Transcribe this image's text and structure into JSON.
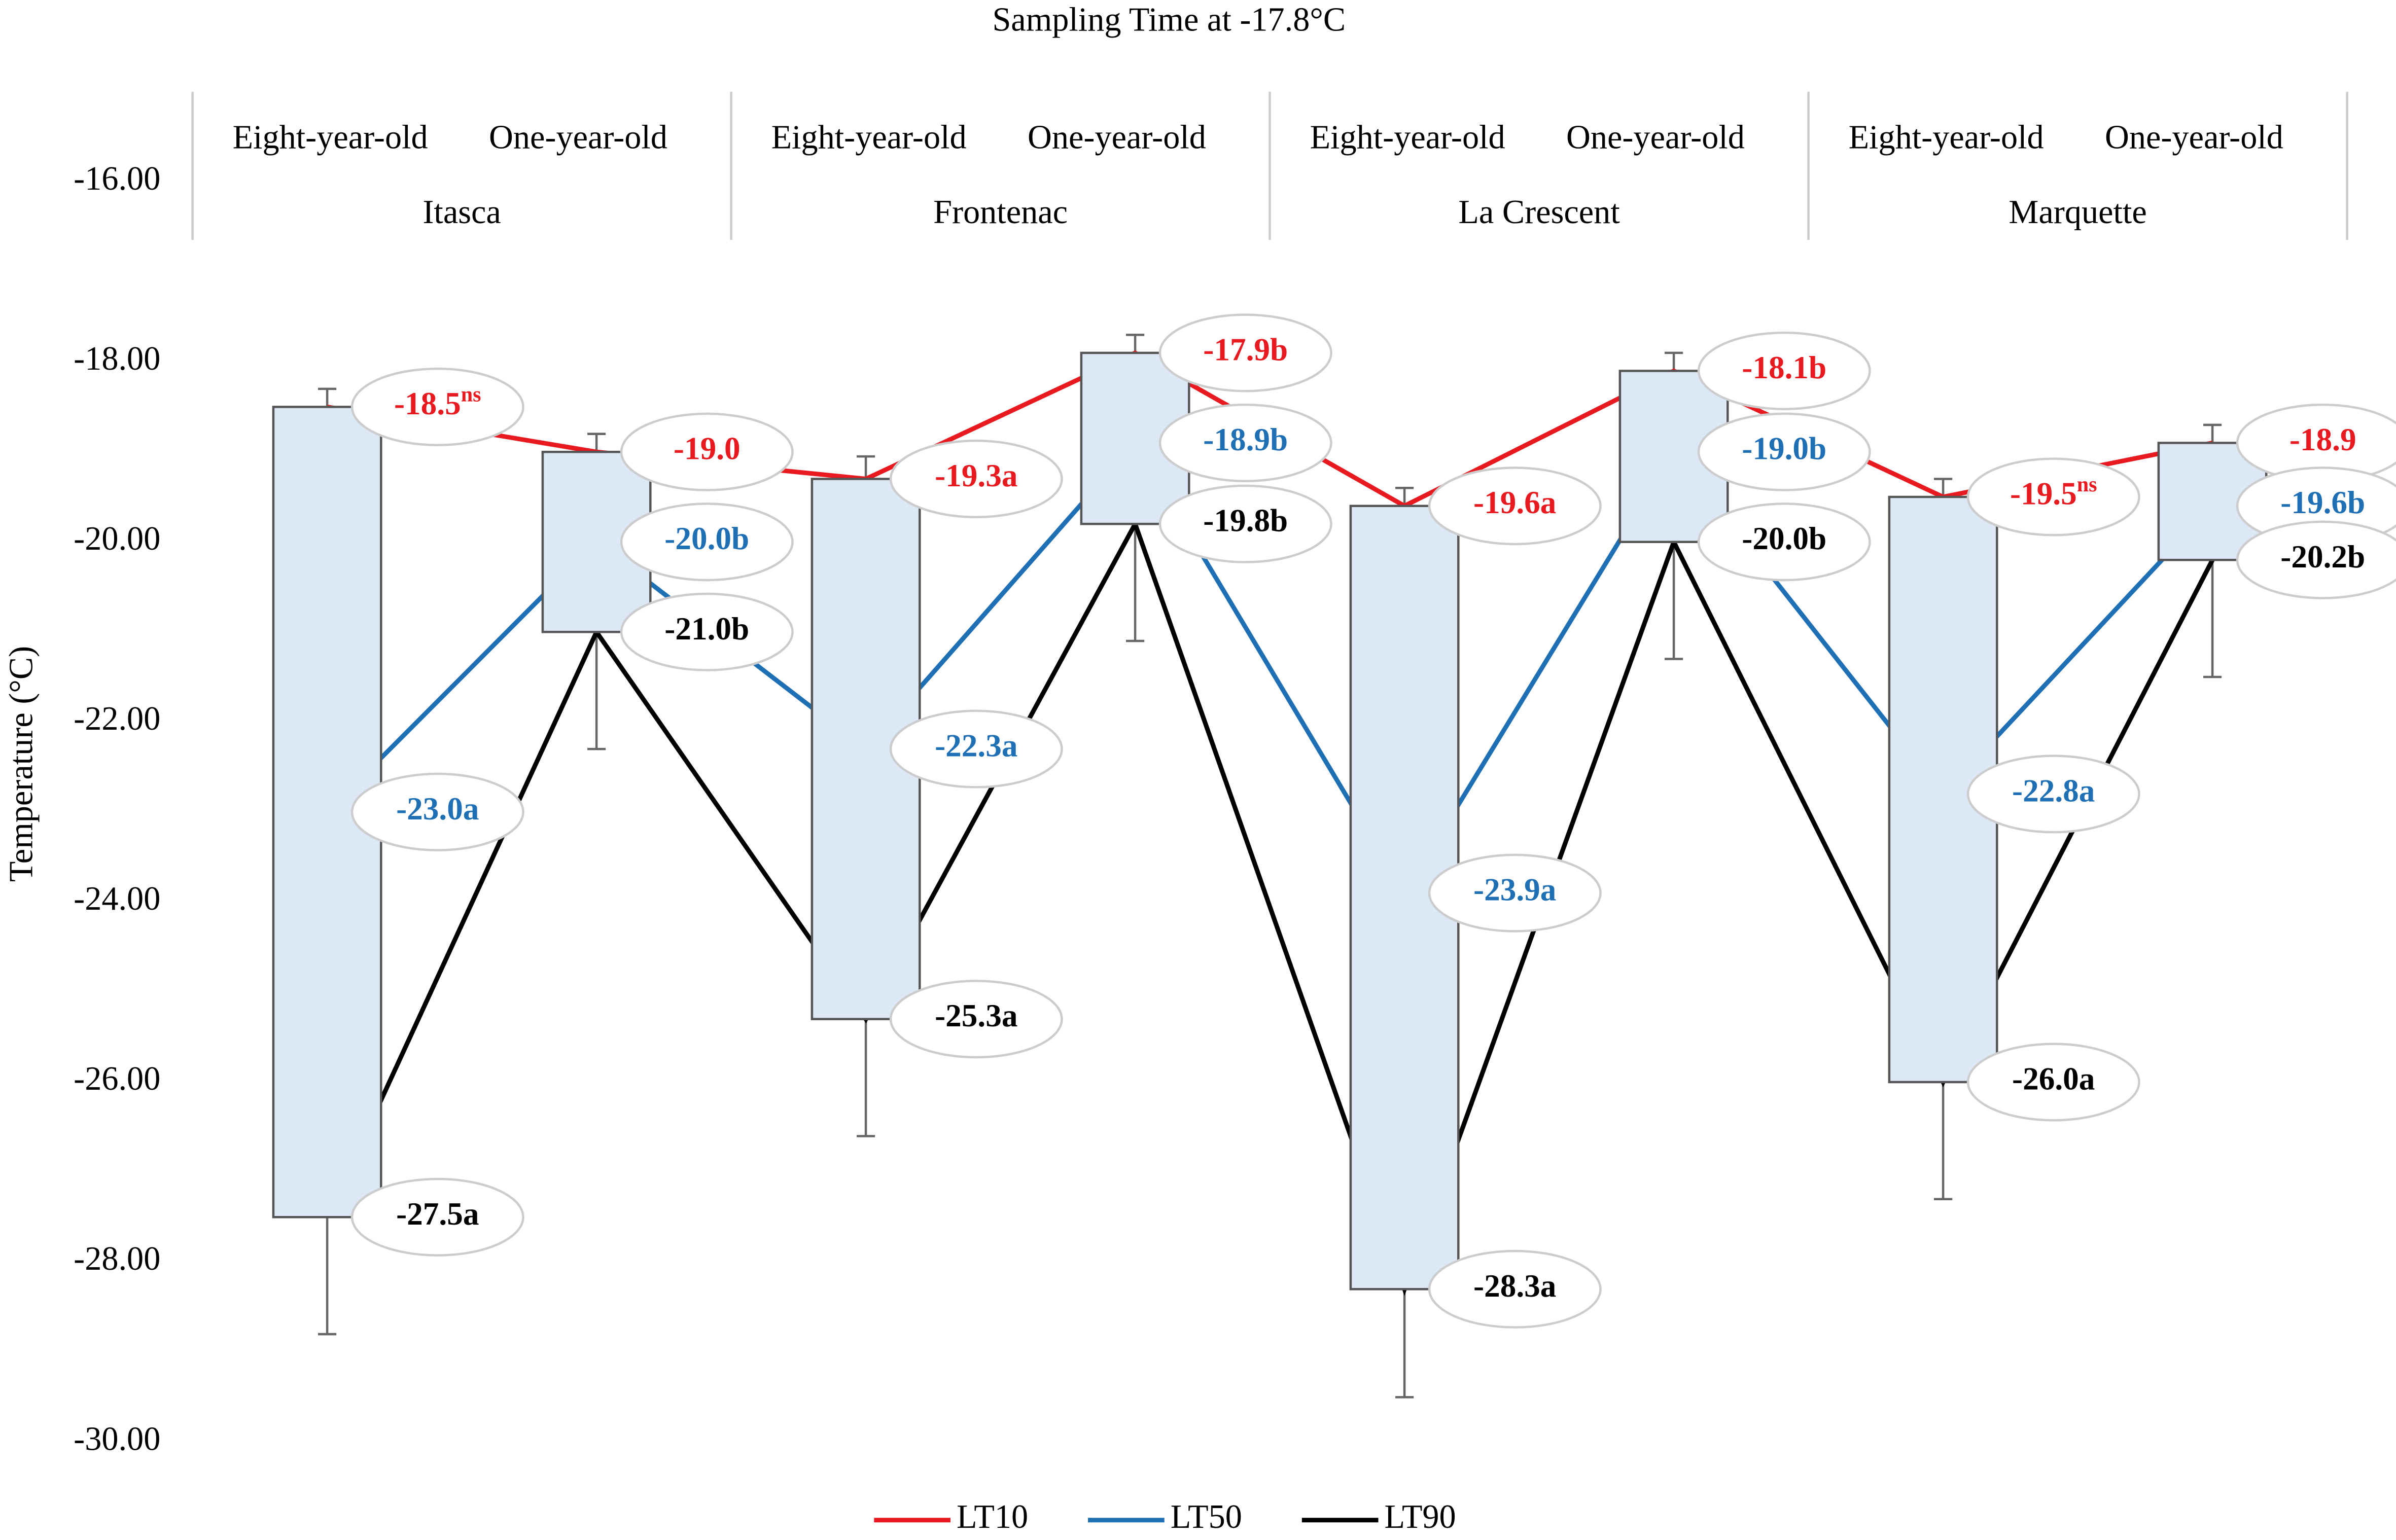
{
  "chart_data": {
    "type": "line",
    "title": "Sampling Time at -17.8°C",
    "y_label": "Temperature (°C)",
    "groups": [
      "Itasca",
      "Frontenac",
      "La Crescent",
      "Marquette"
    ],
    "categories": [
      "Eight-year-old",
      "One-year-old",
      "Eight-year-old",
      "One-year-old",
      "Eight-year-old",
      "One-year-old",
      "Eight-year-old",
      "One-year-old"
    ],
    "ylim": [
      -30,
      -16
    ],
    "yticks": [
      {
        "value": -16,
        "label": "-16.00"
      },
      {
        "value": -18,
        "label": "-18.00"
      },
      {
        "value": -20,
        "label": "-20.00"
      },
      {
        "value": -22,
        "label": "-22.00"
      },
      {
        "value": -24,
        "label": "-24.00"
      },
      {
        "value": -26,
        "label": "-26.00"
      },
      {
        "value": -28,
        "label": "-28.00"
      },
      {
        "value": -30,
        "label": "-30.00"
      }
    ],
    "box_color": "#dce8f6",
    "series": [
      {
        "name": "LT10",
        "color": "#e8191f",
        "values": [
          -18.5,
          -19.0,
          -19.3,
          -17.9,
          -19.6,
          -18.1,
          -19.5,
          -18.9
        ],
        "value_labels": [
          "-18.5ns",
          "-19.0",
          "-19.3a",
          "-17.9b",
          "-19.6a",
          "-18.1b",
          "-19.5ns",
          "-18.9"
        ],
        "errors": [
          0.2,
          0.2,
          0.25,
          0.2,
          0.2,
          0.2,
          0.2,
          0.2
        ]
      },
      {
        "name": "LT50",
        "color": "#1f6fb5",
        "values": [
          -23.0,
          -20.0,
          -22.3,
          -18.9,
          -23.9,
          -19.0,
          -22.8,
          -19.6
        ],
        "value_labels": [
          "-23.0a",
          "-20.0b",
          "-22.3a",
          "-18.9b",
          "-23.9a",
          "-19.0b",
          "-22.8a",
          "-19.6b"
        ]
      },
      {
        "name": "LT90",
        "color": "#000000",
        "values": [
          -27.5,
          -21.0,
          -25.3,
          -19.8,
          -28.3,
          -20.0,
          -26.0,
          -20.2
        ],
        "value_labels": [
          "-27.5a",
          "-21.0b",
          "-25.3a",
          "-19.8b",
          "-28.3a",
          "-20.0b",
          "-26.0a",
          "-20.2b"
        ],
        "errors": [
          1.3,
          1.3,
          1.3,
          1.3,
          1.2,
          1.3,
          1.3,
          1.3
        ]
      }
    ]
  }
}
